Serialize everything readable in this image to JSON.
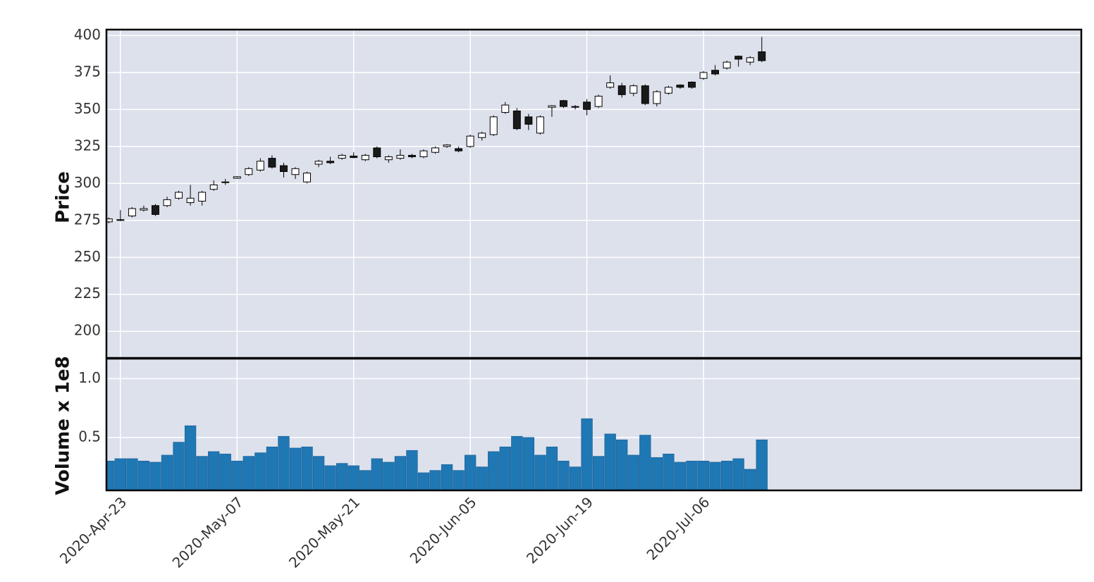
{
  "chart_data": {
    "type": "candlestick",
    "ylabel": "Price",
    "xlim": [
      -0.2,
      83.4
    ],
    "xticks": [
      {
        "value": 1,
        "label": "2020-Apr-23"
      },
      {
        "value": 11,
        "label": "2020-May-07"
      },
      {
        "value": 21,
        "label": "2020-May-21"
      },
      {
        "value": 31,
        "label": "2020-Jun-05"
      },
      {
        "value": 41,
        "label": "2020-Jun-19"
      },
      {
        "value": 51,
        "label": "2020-Jul-06"
      }
    ],
    "ylim": [
      182,
      404
    ],
    "yticks": [
      200,
      225,
      250,
      275,
      300,
      325,
      350,
      375,
      400
    ],
    "grid": true,
    "up_color": "#ffffff",
    "down_color": "#1a1a1a",
    "open": [
      274,
      275,
      278,
      282,
      285,
      285,
      290,
      287,
      288,
      296,
      300.5,
      303.5,
      306,
      309,
      317,
      312,
      306,
      301,
      313,
      315,
      317,
      318.5,
      316,
      324,
      316,
      317,
      319,
      318,
      321,
      325,
      323.5,
      325,
      331,
      333,
      348,
      349,
      345,
      334,
      351.5,
      356,
      352,
      355,
      352,
      365,
      366,
      361,
      366,
      354,
      361,
      366.5,
      368.5,
      371,
      376.5,
      378,
      386,
      382,
      389
    ],
    "high": [
      277,
      282,
      284,
      285,
      286,
      291,
      295,
      299,
      295,
      302,
      303,
      305,
      311,
      317,
      319,
      314,
      311,
      308,
      316,
      318,
      320,
      321,
      320,
      325,
      319,
      323,
      320,
      323,
      325,
      326.5,
      325,
      333,
      335,
      346,
      355,
      351,
      347,
      346,
      353,
      356.5,
      353,
      357,
      360,
      373,
      368,
      367,
      367,
      363,
      366,
      367,
      369,
      376,
      380,
      383,
      386.5,
      386,
      399
    ],
    "low": [
      273,
      274.5,
      277,
      281,
      278,
      284,
      289,
      285,
      285,
      295,
      299,
      303,
      305,
      308,
      310,
      304,
      303,
      300,
      311,
      313,
      316,
      317,
      315,
      317,
      314,
      316,
      317,
      317,
      320,
      324,
      321,
      324,
      329,
      332,
      347,
      336,
      336,
      333,
      345,
      351,
      350,
      346,
      351,
      364,
      358,
      359,
      353,
      352,
      360,
      364,
      364,
      370,
      373,
      377,
      379,
      380,
      382
    ],
    "close": [
      276,
      275.5,
      283,
      283,
      279,
      289,
      294,
      290,
      294,
      299,
      301,
      304.5,
      310,
      315,
      311,
      308,
      310,
      307,
      315,
      314,
      319,
      317.5,
      319,
      318,
      318,
      319,
      318,
      322,
      324,
      326,
      322,
      332,
      334,
      345,
      353,
      337,
      340,
      345,
      352.5,
      352,
      351.5,
      350,
      359,
      368,
      360,
      366,
      354,
      362,
      365,
      365,
      365,
      375,
      374,
      382,
      384,
      385,
      383
    ],
    "volume": {
      "ylabel": "Volume x 1e8",
      "color": "#1f77b4",
      "ylim": [
        0.05,
        1.17
      ],
      "yticks": [
        0.5,
        {
          "value": 1,
          "label": "1.0"
        }
      ],
      "values": [
        0.3,
        0.32,
        0.32,
        0.3,
        0.29,
        0.35,
        0.46,
        0.6,
        0.34,
        0.38,
        0.36,
        0.3,
        0.34,
        0.37,
        0.42,
        0.51,
        0.41,
        0.42,
        0.34,
        0.26,
        0.28,
        0.26,
        0.22,
        0.32,
        0.29,
        0.34,
        0.39,
        0.2,
        0.22,
        0.27,
        0.22,
        0.35,
        0.25,
        0.38,
        0.42,
        0.51,
        0.5,
        0.35,
        0.42,
        0.3,
        0.25,
        0.66,
        0.34,
        0.53,
        0.48,
        0.35,
        0.52,
        0.33,
        0.36,
        0.29,
        0.3,
        0.3,
        0.29,
        0.3,
        0.32,
        0.23,
        0.48
      ]
    }
  }
}
